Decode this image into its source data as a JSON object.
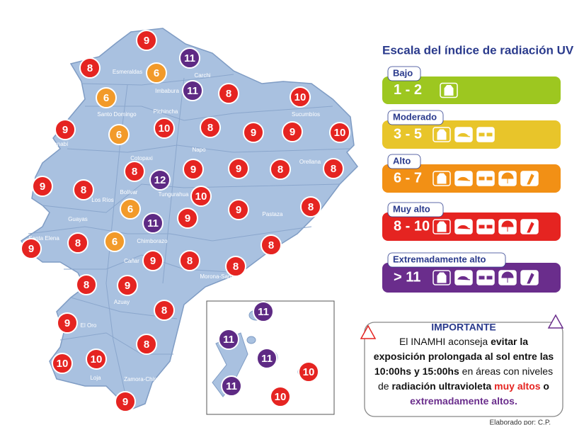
{
  "map": {
    "markers": [
      9,
      11,
      8,
      6,
      11,
      8,
      10,
      6,
      6,
      10,
      8,
      9,
      9,
      9,
      10,
      8,
      12,
      9,
      9,
      8,
      8,
      9,
      8,
      10,
      6,
      9,
      9,
      8,
      11,
      8,
      9,
      6,
      8,
      9,
      8,
      8,
      8,
      9,
      8,
      9,
      8,
      10,
      10,
      9
    ],
    "galapagos_markers": [
      11,
      11,
      11,
      10,
      11,
      10
    ],
    "provinces": [
      "Esmeraldas",
      "Carchi",
      "Imbabura",
      "Santo Domingo",
      "Pichincha",
      "Manabí",
      "Napo",
      "Cotopaxi",
      "Orellana",
      "Sucumbíos",
      "Los Ríos",
      "Bolívar",
      "Tungurahua",
      "Pastaza",
      "Guayas",
      "Santa Elena",
      "Chimborazo",
      "Cañar",
      "Morona-Santiago",
      "Azuay",
      "El Oro",
      "Loja",
      "Zamora-Chinchipe"
    ]
  },
  "legend": {
    "title": "Escala del índice de radiación UV",
    "levels": [
      {
        "name": "Bajo",
        "range": "1 - 2"
      },
      {
        "name": "Moderado",
        "range": "3 - 5"
      },
      {
        "name": "Alto",
        "range": "6 - 7"
      },
      {
        "name": "Muy alto",
        "range": "8 - 10"
      },
      {
        "name": "Extremadamente alto",
        "range": "> 11"
      }
    ]
  },
  "important": {
    "title": "IMPORTANTE",
    "lines": [
      [
        {
          "text": "El INAMHI aconseja ",
          "style": "normal"
        },
        {
          "text": "evitar la",
          "style": "bold"
        }
      ],
      [
        {
          "text": "exposición prolongada al sol entre las",
          "style": "bold"
        }
      ],
      [
        {
          "text": "10:00hs y 15:00hs",
          "style": "bold"
        },
        {
          "text": " en áreas con niveles",
          "style": "normal"
        }
      ],
      [
        {
          "text": "de ",
          "style": "normal"
        },
        {
          "text": "radiación ultravioleta",
          "style": "bold"
        },
        {
          "text": " muy altos",
          "style": "red"
        },
        {
          "text": " o",
          "style": "bold"
        }
      ],
      [
        {
          "text": "extremadamente altos.",
          "style": "purple"
        }
      ]
    ]
  },
  "credit": "Elaborado por: C.P."
}
